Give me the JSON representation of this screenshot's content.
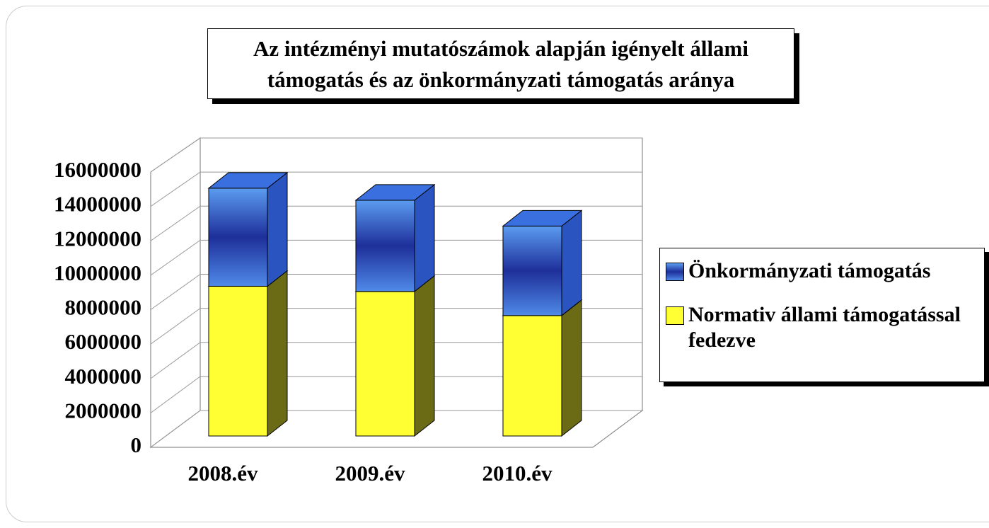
{
  "chart_data": {
    "type": "bar",
    "stacked": true,
    "title": "Az intézményi mutatószámok alapján igényelt állami támogatás és az önkormányzati támogatás aránya",
    "categories": [
      "2008.év",
      "2009.év",
      "2010.év"
    ],
    "series": [
      {
        "name": "Normativ állami támogatással fedezve",
        "color": "#ffff33",
        "values": [
          8700000,
          8400000,
          7000000
        ]
      },
      {
        "name": "Önkormányzati támogatás",
        "color": "#3366cc",
        "values": [
          5700000,
          5300000,
          5200000
        ]
      }
    ],
    "ylim": [
      0,
      16000000
    ],
    "yticks": [
      0,
      2000000,
      4000000,
      6000000,
      8000000,
      10000000,
      12000000,
      14000000,
      16000000
    ],
    "grid": true,
    "legend": "right"
  }
}
